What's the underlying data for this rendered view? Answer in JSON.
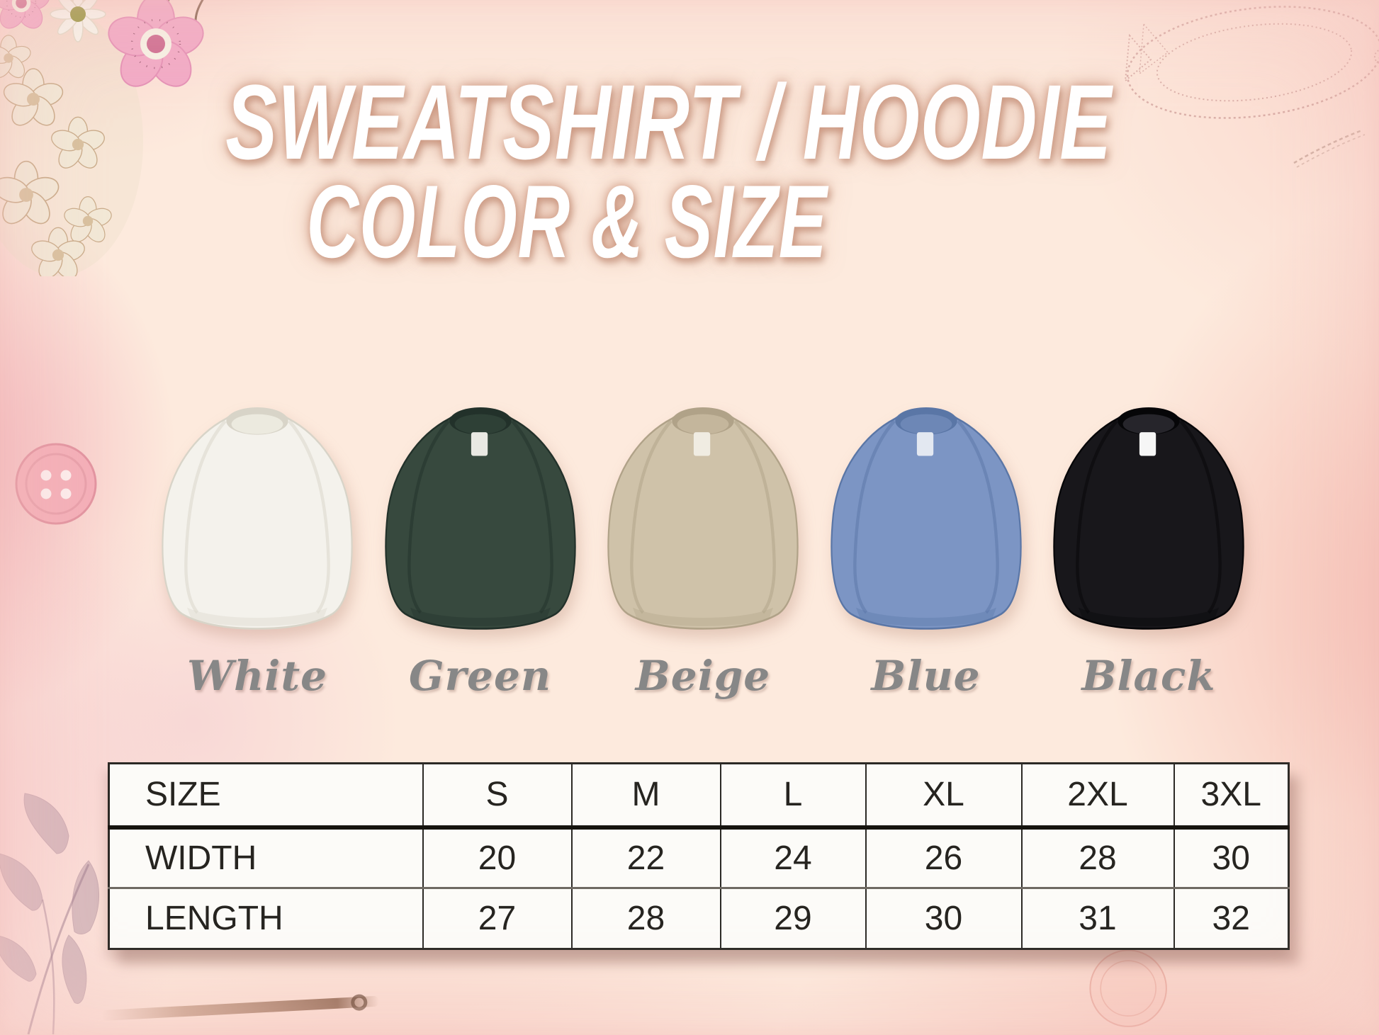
{
  "title": {
    "line1": "SWEATSHIRT / HOODIE",
    "line2": "COLOR & SIZE"
  },
  "color_options": [
    {
      "label": "White",
      "body": "#f4f2ec",
      "shade": "#d8d4c8",
      "collar": "#eceadf",
      "tag": ""
    },
    {
      "label": "Green",
      "body": "#37493e",
      "shade": "#22312a",
      "collar": "#2e4036",
      "tag": "#e9e9e3"
    },
    {
      "label": "Beige",
      "body": "#cfc2a9",
      "shade": "#b0a288",
      "collar": "#c4b69c",
      "tag": "#f0ece2"
    },
    {
      "label": "Blue",
      "body": "#7c95c4",
      "shade": "#5a76a6",
      "collar": "#6d87b6",
      "tag": "#e3e8f1"
    },
    {
      "label": "Black",
      "body": "#18171b",
      "shade": "#060608",
      "collar": "#26252b",
      "tag": "#f6f6f6"
    }
  ],
  "size_table": {
    "column_headers": [
      "SIZE",
      "S",
      "M",
      "L",
      "XL",
      "2XL",
      "3XL"
    ],
    "rows": [
      {
        "label": "WIDTH",
        "values": [
          "20",
          "22",
          "24",
          "26",
          "28",
          "30"
        ]
      },
      {
        "label": "LENGTH",
        "values": [
          "27",
          "28",
          "29",
          "30",
          "31",
          "32"
        ]
      }
    ]
  },
  "decorations": {
    "top_left": "watercolor-flower-cluster",
    "top_right": "lace-frame-sketch",
    "upper_right": "needle-sketch",
    "left": "pink-sewing-button",
    "bottom_left": "leaf-branch-sketch",
    "bottom": "wooden-needle-stick-sketch",
    "bottom_right": "button-outline-sketch"
  },
  "style": {
    "background_cream": "#fdeadd",
    "edge_pink": "#f3b4ba",
    "title_color": "#ffffff",
    "title_glow": "#c79078",
    "label_gray": "#878787",
    "table_background": "#fcfbf8",
    "table_border": "#2b2925",
    "table_text": "#262420"
  }
}
